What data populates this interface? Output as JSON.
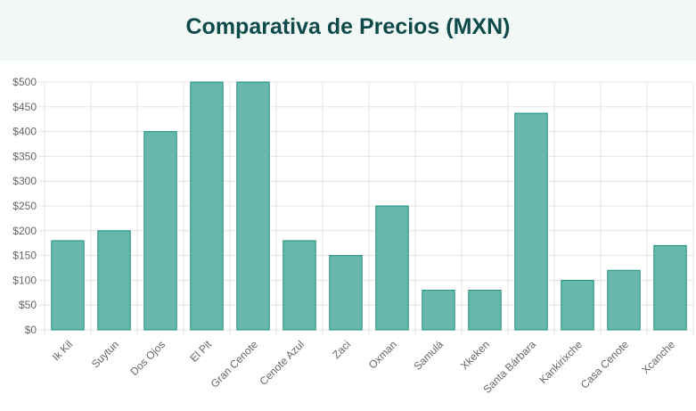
{
  "header": {
    "title": "Comparativa de Precios (MXN)"
  },
  "chart_data": {
    "type": "bar",
    "title": "Comparativa de Precios (MXN)",
    "xlabel": "",
    "ylabel": "",
    "ylim": [
      0,
      500
    ],
    "yticks": [
      0,
      50,
      100,
      150,
      200,
      250,
      300,
      350,
      400,
      450,
      500
    ],
    "ytick_labels": [
      "$0",
      "$50",
      "$100",
      "$150",
      "$200",
      "$250",
      "$300",
      "$350",
      "$400",
      "$450",
      "$500"
    ],
    "grid": true,
    "legend": "none",
    "categories": [
      "Ik Kil",
      "Suytun",
      "Dos Ojos",
      "El Pit",
      "Gran Cenote",
      "Cenote Azul",
      "Zaci",
      "Oxman",
      "Samulá",
      "Xkeken",
      "Santa Bárbara",
      "Kankirixche",
      "Casa Cenote",
      "Xcanche"
    ],
    "values": [
      180,
      200,
      400,
      500,
      500,
      180,
      150,
      250,
      80,
      80,
      437,
      100,
      120,
      170
    ],
    "colors": {
      "bar_fill": "#66b8ad",
      "bar_stroke": "#1f8f7f",
      "grid": "#e4e4e4",
      "tick_text": "#666666"
    }
  }
}
